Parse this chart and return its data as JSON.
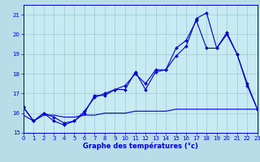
{
  "title": "",
  "xlabel": "Graphe des températures (°c)",
  "ylabel": "",
  "xlim": [
    0,
    23
  ],
  "ylim": [
    15,
    21.5
  ],
  "yticks": [
    15,
    16,
    17,
    18,
    19,
    20,
    21
  ],
  "xticks": [
    0,
    1,
    2,
    3,
    4,
    5,
    6,
    7,
    8,
    9,
    10,
    11,
    12,
    13,
    14,
    15,
    16,
    17,
    18,
    19,
    20,
    21,
    22,
    23
  ],
  "bg_color": "#b8dde8",
  "plot_bg_color": "#c8eaf2",
  "line_color": "#0000cc",
  "grid_color": "#9dc8d8",
  "line1_x": [
    0,
    1,
    2,
    3,
    4,
    5,
    6,
    7,
    8,
    9,
    10,
    11,
    12,
    13,
    14,
    15,
    16,
    17,
    18,
    19,
    20,
    21,
    22,
    23
  ],
  "line1_y": [
    16.3,
    15.6,
    16.0,
    15.6,
    15.4,
    15.6,
    16.0,
    16.9,
    16.9,
    17.2,
    17.2,
    18.1,
    17.2,
    18.1,
    18.2,
    19.3,
    19.7,
    20.7,
    19.3,
    19.3,
    20.0,
    19.0,
    17.4,
    16.2
  ],
  "line2_x": [
    0,
    1,
    2,
    3,
    4,
    5,
    6,
    7,
    8,
    9,
    10,
    11,
    12,
    13,
    14,
    15,
    16,
    17,
    18,
    19,
    20,
    21,
    22,
    23
  ],
  "line2_y": [
    16.3,
    15.6,
    16.0,
    15.8,
    15.5,
    15.6,
    16.1,
    16.8,
    17.0,
    17.2,
    17.4,
    18.0,
    17.5,
    18.2,
    18.2,
    18.9,
    19.4,
    20.8,
    21.1,
    19.3,
    20.1,
    19.0,
    17.5,
    16.2
  ],
  "line3_x": [
    0,
    1,
    2,
    3,
    4,
    5,
    6,
    7,
    8,
    9,
    10,
    11,
    12,
    13,
    14,
    15,
    16,
    17,
    18,
    19,
    20,
    21,
    22,
    23
  ],
  "line3_y": [
    15.9,
    15.6,
    15.9,
    15.9,
    15.8,
    15.8,
    15.9,
    15.9,
    16.0,
    16.0,
    16.0,
    16.1,
    16.1,
    16.1,
    16.1,
    16.2,
    16.2,
    16.2,
    16.2,
    16.2,
    16.2,
    16.2,
    16.2,
    16.2
  ],
  "tick_fontsize": 5.0,
  "xlabel_fontsize": 6.0
}
